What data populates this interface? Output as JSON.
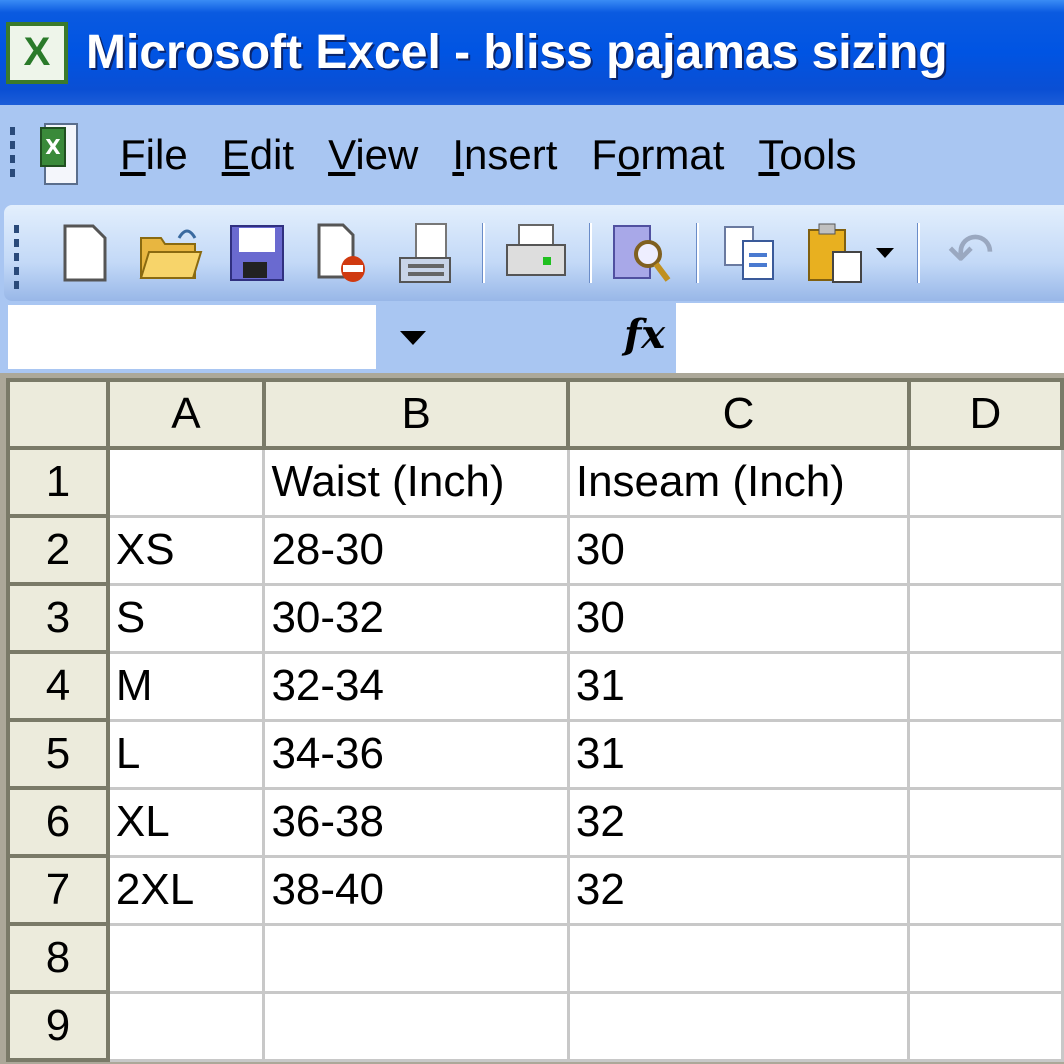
{
  "window": {
    "title": "Microsoft Excel - bliss pajamas sizing"
  },
  "menu": [
    {
      "label": "File",
      "u": "F",
      "rest": "ile"
    },
    {
      "label": "Edit",
      "u": "E",
      "rest": "dit"
    },
    {
      "label": "View",
      "u": "V",
      "rest": "iew"
    },
    {
      "label": "Insert",
      "u": "I",
      "rest": "nsert"
    },
    {
      "label": "Format",
      "pre": "F",
      "u": "o",
      "rest": "rmat"
    },
    {
      "label": "Tools",
      "u": "T",
      "rest": "ools"
    }
  ],
  "toolbar": [
    "new-icon",
    "open-icon",
    "save-icon",
    "permission-icon",
    "email-icon",
    "print-icon",
    "print-preview-icon",
    "copy-icon",
    "paste-icon",
    "undo-icon"
  ],
  "formula_bar": {
    "name_box": "",
    "fx": "fx",
    "value": ""
  },
  "columns": [
    "A",
    "B",
    "C",
    "D"
  ],
  "rows": [
    {
      "n": "1",
      "cells": [
        "",
        "Waist (Inch)",
        "Inseam (Inch)",
        ""
      ]
    },
    {
      "n": "2",
      "cells": [
        "XS",
        "28-30",
        "30",
        ""
      ]
    },
    {
      "n": "3",
      "cells": [
        "S",
        "30-32",
        "30",
        ""
      ]
    },
    {
      "n": "4",
      "cells": [
        "M",
        "32-34",
        "31",
        ""
      ]
    },
    {
      "n": "5",
      "cells": [
        "L",
        "34-36",
        "31",
        ""
      ]
    },
    {
      "n": "6",
      "cells": [
        "XL",
        "36-38",
        "32",
        ""
      ]
    },
    {
      "n": "7",
      "cells": [
        "2XL",
        "38-40",
        "32",
        ""
      ]
    },
    {
      "n": "8",
      "cells": [
        "",
        "",
        "",
        ""
      ]
    },
    {
      "n": "9",
      "cells": [
        "",
        "",
        "",
        ""
      ]
    }
  ]
}
